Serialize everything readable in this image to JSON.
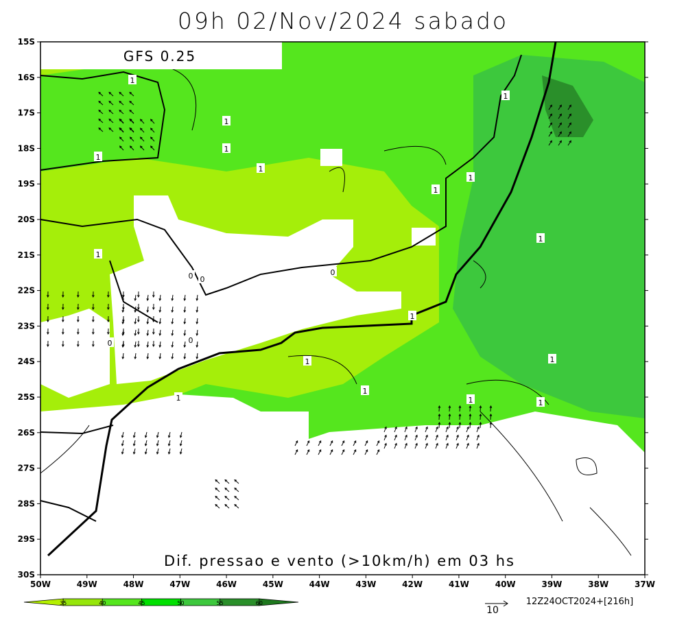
{
  "header": {
    "title": "09h 02/Nov/2024 sabado",
    "model": "GFS 0.25"
  },
  "map": {
    "footer": "Dif. pressao e vento (>10km/h) em 03 hs",
    "lat_labels": [
      "15S",
      "16S",
      "17S",
      "18S",
      "19S",
      "20S",
      "21S",
      "22S",
      "23S",
      "24S",
      "25S",
      "26S",
      "27S",
      "28S",
      "29S",
      "30S"
    ],
    "lon_labels": [
      "50W",
      "49W",
      "48W",
      "47W",
      "46W",
      "45W",
      "44W",
      "43W",
      "42W",
      "41W",
      "40W",
      "39W",
      "38W",
      "37W"
    ],
    "contour_labels": [
      "1",
      "1",
      "1",
      "1",
      "1",
      "1",
      "1",
      "1",
      "1",
      "1",
      "1",
      "1",
      "1",
      "1",
      "1",
      "1",
      "1",
      "0",
      "0",
      "0",
      "0",
      "0"
    ]
  },
  "colorbar": {
    "levels": [
      35,
      40,
      45,
      50,
      55,
      60
    ]
  },
  "footer": {
    "vector_scale": "10",
    "timestamp": "12Z24OCT2024+[216h]"
  }
}
